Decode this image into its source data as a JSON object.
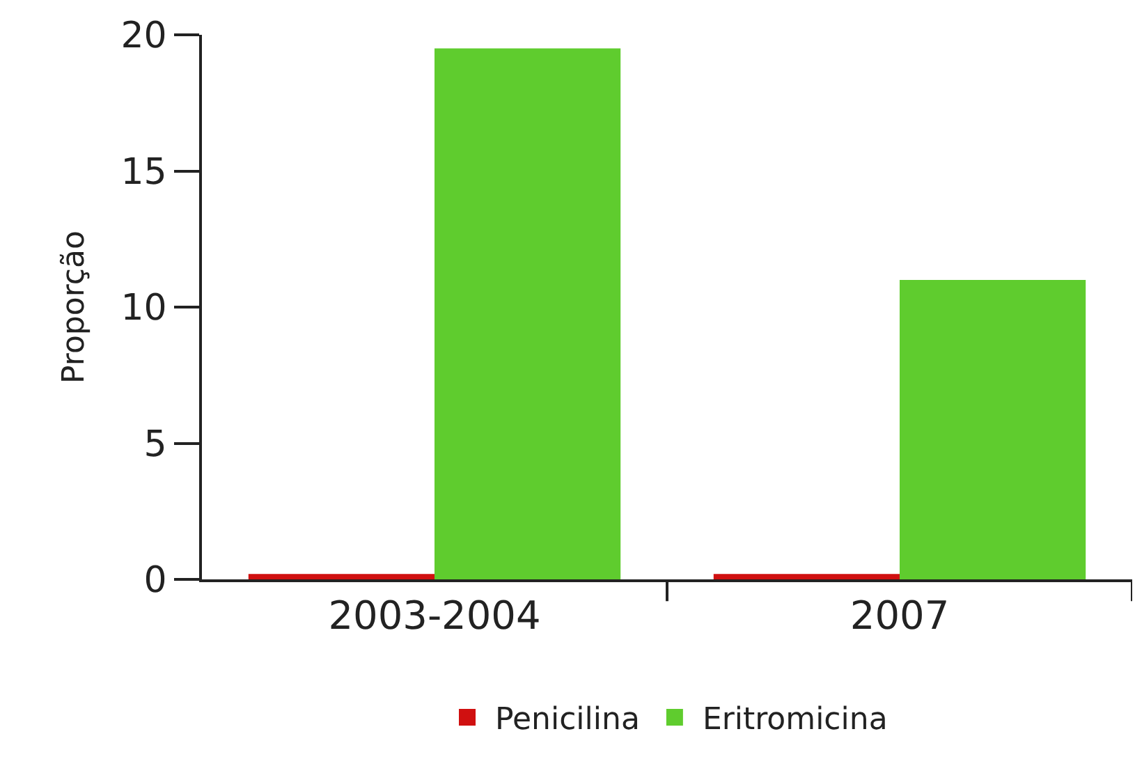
{
  "chart_data": {
    "type": "bar",
    "ylabel": "Proporção",
    "categories": [
      "2003-2004",
      "2007"
    ],
    "series": [
      {
        "name": "Penicilina",
        "color": "#d01010",
        "values": [
          0.2,
          0.2
        ]
      },
      {
        "name": "Eritromicina",
        "color": "#5fcc2e",
        "values": [
          19.5,
          11.0
        ]
      }
    ],
    "ylim": [
      0,
      20
    ],
    "yticks": [
      0,
      5,
      10,
      15,
      20
    ],
    "grid": false,
    "legend": "bottom"
  }
}
